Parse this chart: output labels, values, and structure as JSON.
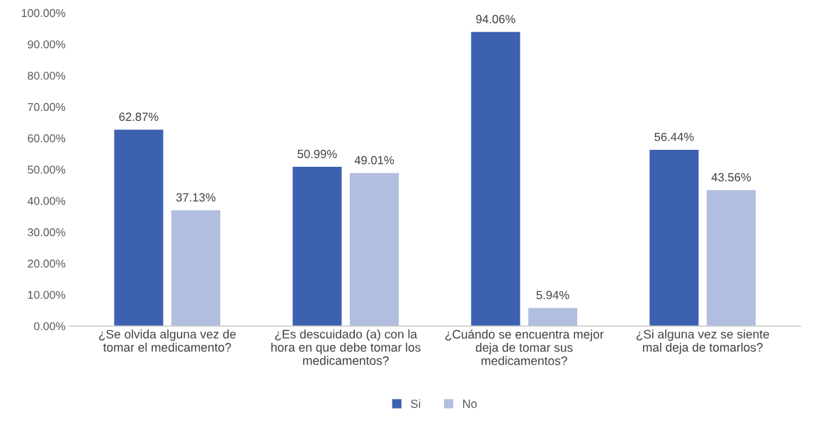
{
  "chart_data": {
    "type": "bar",
    "categories": [
      "¿Se olvida alguna vez de tomar el medicamento?",
      "¿Es descuidado (a) con la hora en que debe tomar los medicamentos?",
      "¿Cuándo se encuentra mejor deja de tomar sus medicamentos?",
      "¿Si alguna vez se siente mal deja de tomarlos?"
    ],
    "series": [
      {
        "name": "Si",
        "color": "#3b61b0",
        "values": [
          62.87,
          50.99,
          94.06,
          56.44
        ],
        "value_labels": [
          "62.87%",
          "50.99%",
          "94.06%",
          "56.44%"
        ]
      },
      {
        "name": "No",
        "color": "#b1bedf",
        "values": [
          37.13,
          49.01,
          5.94,
          43.56
        ],
        "value_labels": [
          "37.13%",
          "49.01%",
          "5.94%",
          "43.56%"
        ]
      }
    ],
    "ylim": [
      0,
      100
    ],
    "yticks": [
      {
        "value": 0,
        "label": "0.00%"
      },
      {
        "value": 10,
        "label": "10.00%"
      },
      {
        "value": 20,
        "label": "20.00%"
      },
      {
        "value": 30,
        "label": "30.00%"
      },
      {
        "value": 40,
        "label": "40.00%"
      },
      {
        "value": 50,
        "label": "50.00%"
      },
      {
        "value": 60,
        "label": "60.00%"
      },
      {
        "value": 70,
        "label": "70.00%"
      },
      {
        "value": 80,
        "label": "80.00%"
      },
      {
        "value": 90,
        "label": "90.00%"
      },
      {
        "value": 100,
        "label": "100.00%"
      }
    ],
    "grid": false,
    "legend": "bottom"
  }
}
